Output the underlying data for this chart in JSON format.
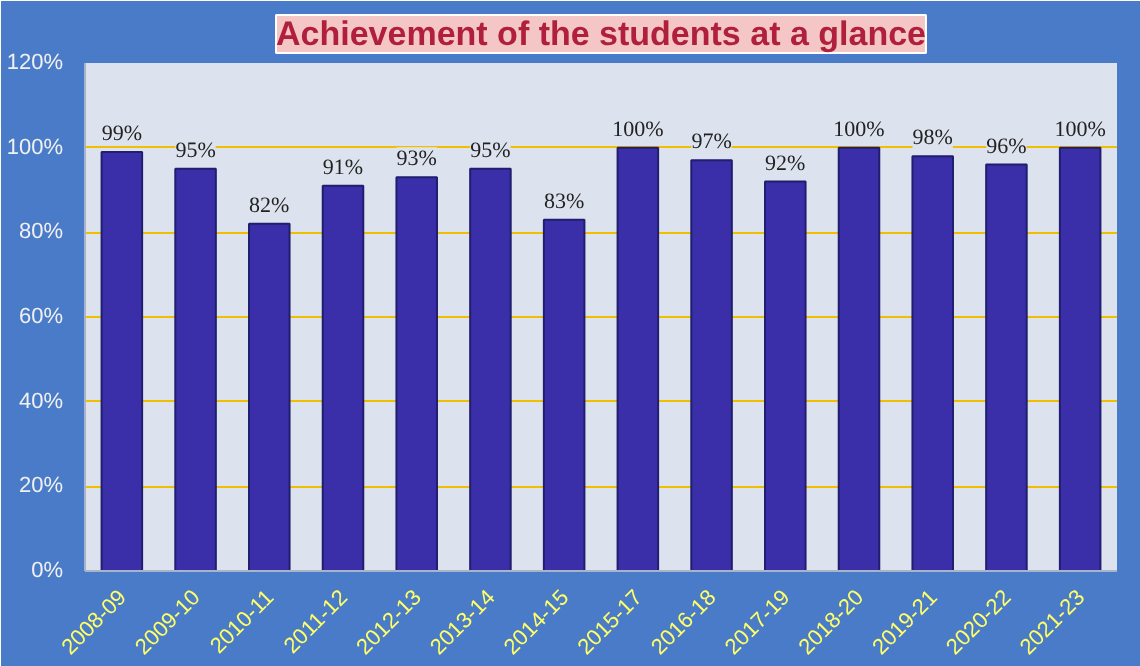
{
  "chart_data": {
    "type": "bar",
    "title": "Achievement of the students at a glance",
    "categories": [
      "2008-09",
      "2009-10",
      "2010-11",
      "2011-12",
      "2012-13",
      "2013-14",
      "2014-15",
      "2015-17",
      "2016-18",
      "2017-19",
      "2018-20",
      "2019-21",
      "2020-22",
      "2021-23"
    ],
    "values": [
      99,
      95,
      82,
      91,
      93,
      95,
      83,
      100,
      97,
      92,
      100,
      98,
      96,
      100
    ],
    "value_labels": [
      "99%",
      "95%",
      "82%",
      "91%",
      "93%",
      "95%",
      "83%",
      "100%",
      "97%",
      "92%",
      "100%",
      "98%",
      "96%",
      "100%"
    ],
    "color": "#3a2fa8",
    "ylim": [
      0,
      120
    ],
    "yticks": [
      {
        "value": 0,
        "label": "0%"
      },
      {
        "value": 20,
        "label": "20%"
      },
      {
        "value": 40,
        "label": "40%"
      },
      {
        "value": 60,
        "label": "60%"
      },
      {
        "value": 80,
        "label": "80%"
      },
      {
        "value": 100,
        "label": "100%"
      },
      {
        "value": 120,
        "label": "120%"
      }
    ],
    "grid": "y"
  }
}
